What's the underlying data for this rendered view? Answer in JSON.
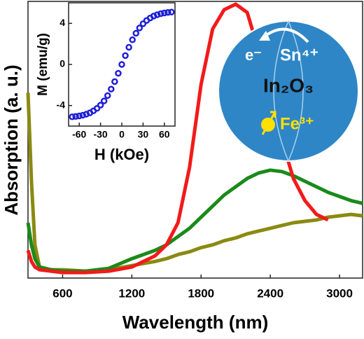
{
  "chart_data": [
    {
      "type": "line",
      "x_label": "Wavelength (nm)",
      "y_label": "Absorption (a. u.)",
      "x": [
        300,
        330,
        360,
        400,
        500,
        600,
        800,
        1000,
        1200,
        1400,
        1500,
        1600,
        1700,
        1800,
        1900,
        2000,
        2100,
        2200,
        2300,
        2400,
        2500,
        2600,
        2700,
        2800,
        2900,
        3000,
        3100,
        3200
      ],
      "series": [
        {
          "color": "#8a8a12",
          "values": [
            0.67,
            0.35,
            0.12,
            0.04,
            0.03,
            0.03,
            0.025,
            0.03,
            0.045,
            0.06,
            0.07,
            0.085,
            0.095,
            0.11,
            0.12,
            0.135,
            0.145,
            0.16,
            0.17,
            0.18,
            0.19,
            0.2,
            0.205,
            0.21,
            0.22,
            0.225,
            0.23,
            0.225
          ]
        },
        {
          "color": "#1a8a1a",
          "values": [
            0.2,
            0.12,
            0.07,
            0.04,
            0.03,
            0.025,
            0.025,
            0.035,
            0.07,
            0.1,
            0.12,
            0.15,
            0.18,
            0.22,
            0.26,
            0.3,
            0.33,
            0.36,
            0.38,
            0.39,
            0.385,
            0.37,
            0.35,
            0.33,
            0.31,
            0.295,
            0.28,
            0.27
          ]
        },
        {
          "color": "#f21a1a",
          "values": [
            0.1,
            0.06,
            0.04,
            0.03,
            0.025,
            0.02,
            0.02,
            0.025,
            0.04,
            0.08,
            0.12,
            0.2,
            0.4,
            0.7,
            0.9,
            0.97,
            0.99,
            0.96,
            0.82,
            0.65,
            0.5,
            0.36,
            0.28,
            0.23,
            0.21,
            null,
            null,
            null
          ]
        }
      ],
      "xlim": [
        300,
        3200
      ],
      "xticks": [
        600,
        1200,
        1800,
        2400,
        3000
      ],
      "ylim": [
        0,
        1
      ],
      "annotations": [
        "e⁻",
        "Sn⁴⁺",
        "In₂O₃",
        "Fe³⁺"
      ]
    },
    {
      "type": "scatter",
      "x_label": "H  (kOe)",
      "y_label": "M (emu/g)",
      "x": [
        -70,
        -65,
        -60,
        -55,
        -50,
        -45,
        -40,
        -35,
        -30,
        -25,
        -20,
        -15,
        -10,
        -5,
        0,
        5,
        10,
        15,
        20,
        25,
        30,
        35,
        40,
        45,
        50,
        55,
        60,
        65,
        70
      ],
      "values": [
        -5.1,
        -5.06,
        -5.01,
        -4.94,
        -4.84,
        -4.71,
        -4.52,
        -4.28,
        -3.96,
        -3.55,
        -3.03,
        -2.4,
        -1.67,
        -0.86,
        0,
        0.86,
        1.67,
        2.4,
        3.03,
        3.55,
        3.96,
        4.28,
        4.52,
        4.71,
        4.84,
        4.94,
        5.01,
        5.06,
        5.1
      ],
      "color": "#1f1fd6",
      "xlim": [
        -75,
        75
      ],
      "xticks": [
        -60,
        -30,
        0,
        30,
        60
      ],
      "ylim": [
        -6,
        6
      ],
      "yticks": [
        -4,
        0,
        4
      ]
    }
  ]
}
